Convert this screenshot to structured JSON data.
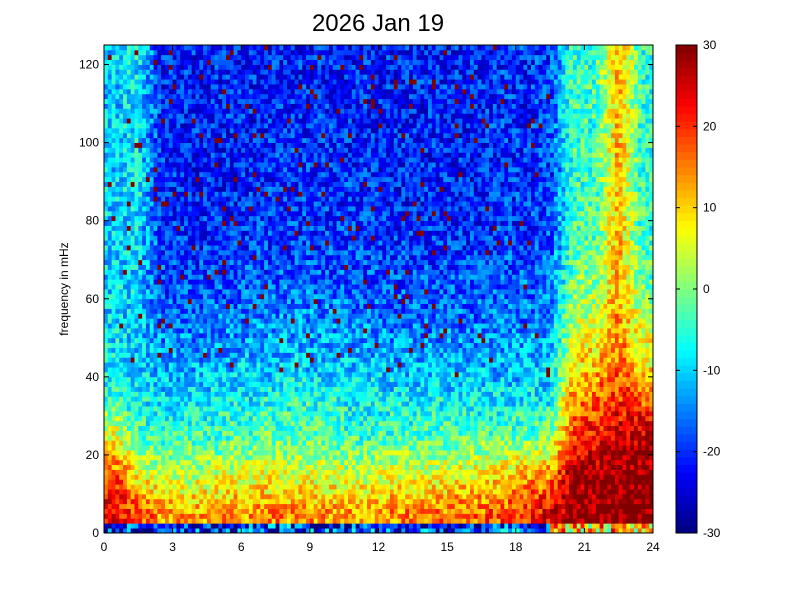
{
  "chart_data": {
    "type": "heatmap",
    "title": "2026 Jan 19",
    "xlabel": "",
    "ylabel": "frequency in mHz",
    "xlim": [
      0,
      24
    ],
    "ylim": [
      0,
      125
    ],
    "xticks": [
      0,
      3,
      6,
      9,
      12,
      15,
      18,
      21,
      24
    ],
    "yticks": [
      0,
      20,
      40,
      60,
      80,
      100,
      120
    ],
    "colormap": "jet",
    "clim": [
      -30,
      30
    ],
    "colorbar_ticks": [
      -30,
      -20,
      -10,
      0,
      10,
      20,
      30
    ],
    "x_bins_hours": [
      0,
      1,
      2,
      3,
      4,
      5,
      6,
      7,
      8,
      9,
      10,
      11,
      12,
      13,
      14,
      15,
      16,
      17,
      18,
      19,
      20,
      21,
      22,
      23
    ],
    "y_bins_mHz": [
      0,
      10,
      20,
      30,
      40,
      50,
      60,
      70,
      80,
      90,
      100,
      110,
      120
    ],
    "values_dB": [
      [
        24,
        18,
        14,
        13,
        13,
        14,
        14,
        15,
        14,
        14,
        13,
        13,
        14,
        15,
        15,
        16,
        17,
        18,
        21,
        24,
        30,
        30,
        30,
        30
      ],
      [
        18,
        8,
        4,
        3,
        4,
        5,
        6,
        6,
        5,
        5,
        4,
        4,
        5,
        6,
        6,
        7,
        8,
        9,
        12,
        14,
        28,
        28,
        30,
        30
      ],
      [
        6,
        -4,
        -4,
        -4,
        -4,
        -3,
        -3,
        -2,
        -3,
        -3,
        -4,
        -4,
        -4,
        -3,
        -3,
        -3,
        -2,
        -2,
        -2,
        0,
        20,
        22,
        26,
        26
      ],
      [
        -4,
        -8,
        -9,
        -9,
        -9,
        -8,
        -8,
        -6,
        -6,
        -6,
        -7,
        -8,
        -8,
        -8,
        -8,
        -9,
        -9,
        -9,
        -9,
        -8,
        14,
        16,
        20,
        16
      ],
      [
        -8,
        -10,
        -13,
        -13,
        -13,
        -12,
        -12,
        -12,
        -11,
        -12,
        -12,
        -12,
        -13,
        -13,
        -13,
        -13,
        -13,
        -13,
        -12,
        -12,
        8,
        10,
        16,
        8
      ],
      [
        -9,
        -10,
        -16,
        -16,
        -16,
        -15,
        -15,
        -14,
        -14,
        -14,
        -15,
        -15,
        -16,
        -16,
        -16,
        -16,
        -16,
        -15,
        -15,
        -14,
        3,
        5,
        14,
        3
      ],
      [
        -10,
        -10,
        -18,
        -19,
        -19,
        -18,
        -18,
        -17,
        -17,
        -17,
        -18,
        -18,
        -18,
        -18,
        -18,
        -18,
        -18,
        -17,
        -17,
        -16,
        -1,
        0,
        12,
        -2
      ],
      [
        -10,
        -9,
        -19,
        -20,
        -20,
        -20,
        -19,
        -19,
        -19,
        -19,
        -19,
        -19,
        -20,
        -20,
        -20,
        -20,
        -20,
        -19,
        -19,
        -18,
        -3,
        -2,
        12,
        -4
      ],
      [
        -10,
        -8,
        -20,
        -21,
        -21,
        -21,
        -20,
        -20,
        -20,
        -20,
        -20,
        -20,
        -21,
        -21,
        -21,
        -21,
        -21,
        -20,
        -20,
        -19,
        -4,
        -4,
        12,
        -5
      ],
      [
        -10,
        -8,
        -20,
        -21,
        -21,
        -21,
        -21,
        -20,
        -20,
        -20,
        -20,
        -21,
        -21,
        -21,
        -21,
        -21,
        -21,
        -20,
        -20,
        -19,
        -4,
        -4,
        12,
        -5
      ],
      [
        -10,
        -8,
        -20,
        -21,
        -21,
        -21,
        -21,
        -21,
        -20,
        -20,
        -21,
        -21,
        -21,
        -21,
        -21,
        -21,
        -21,
        -20,
        -20,
        -19,
        -4,
        -4,
        12,
        -5
      ],
      [
        -10,
        -8,
        -21,
        -21,
        -21,
        -21,
        -21,
        -21,
        -21,
        -21,
        -21,
        -21,
        -21,
        -21,
        -21,
        -21,
        -21,
        -20,
        -20,
        -19,
        -4,
        -4,
        12,
        -5
      ],
      [
        -10,
        -8,
        -21,
        -21,
        -21,
        -21,
        -21,
        -21,
        -21,
        -21,
        -21,
        -21,
        -21,
        -21,
        -21,
        -21,
        -21,
        -20,
        -20,
        -19,
        -4,
        -4,
        12,
        -5
      ]
    ]
  }
}
